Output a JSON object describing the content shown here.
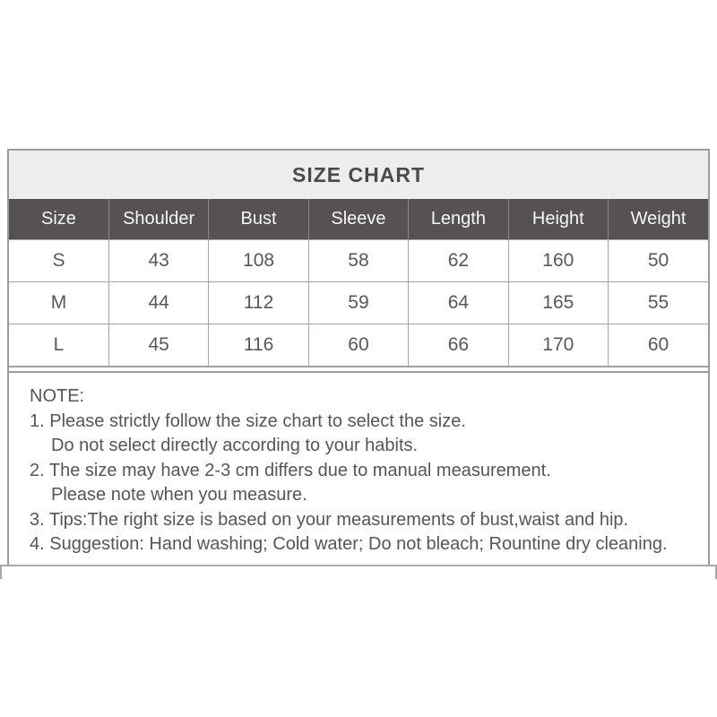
{
  "title": "SIZE CHART",
  "table": {
    "columns": [
      "Size",
      "Shoulder",
      "Bust",
      "Sleeve",
      "Length",
      "Height",
      "Weight"
    ],
    "rows": [
      [
        "S",
        "43",
        "108",
        "58",
        "62",
        "160",
        "50"
      ],
      [
        "M",
        "44",
        "112",
        "59",
        "64",
        "165",
        "55"
      ],
      [
        "L",
        "45",
        "116",
        "60",
        "66",
        "170",
        "60"
      ]
    ]
  },
  "notes": {
    "heading": "NOTE:",
    "lines": [
      "1. Please strictly follow the size chart to select the size.",
      "Do not select directly according to your habits.",
      "2. The size may have 2-3 cm differs due to manual measurement.",
      "Please note when you measure.",
      "3. Tips:The right size is based on your measurements of bust,waist and hip.",
      "4. Suggestion: Hand washing; Cold water; Do not bleach; Rountine dry cleaning."
    ]
  },
  "colors": {
    "title_bar_bg": "#ededed",
    "title_text": "#4a4a4a",
    "header_bg": "#565152",
    "header_text": "#f7f7f7",
    "grid_border": "#a6a6a6",
    "outer_border": "#9b9b9b",
    "body_text": "#55565a"
  },
  "chart_data": {
    "type": "table",
    "title": "SIZE CHART",
    "columns": [
      "Size",
      "Shoulder",
      "Bust",
      "Sleeve",
      "Length",
      "Height",
      "Weight"
    ],
    "rows": [
      [
        "S",
        43,
        108,
        58,
        62,
        160,
        50
      ],
      [
        "M",
        44,
        112,
        59,
        64,
        165,
        55
      ],
      [
        "L",
        45,
        116,
        60,
        66,
        170,
        60
      ]
    ],
    "notes": [
      "NOTE:",
      "1. Please strictly follow the size chart to select the size.",
      "Do not select directly according to your habits.",
      "2. The size may have 2-3 cm differs due to manual measurement.",
      "Please note when you measure.",
      "3. Tips:The right size is based on your measurements of bust,waist and hip.",
      "4. Suggestion: Hand washing; Cold water; Do not bleach; Rountine dry cleaning."
    ],
    "layout_hints": {
      "grid": true,
      "header_style": "dark-band",
      "title_position": "top-band"
    }
  }
}
